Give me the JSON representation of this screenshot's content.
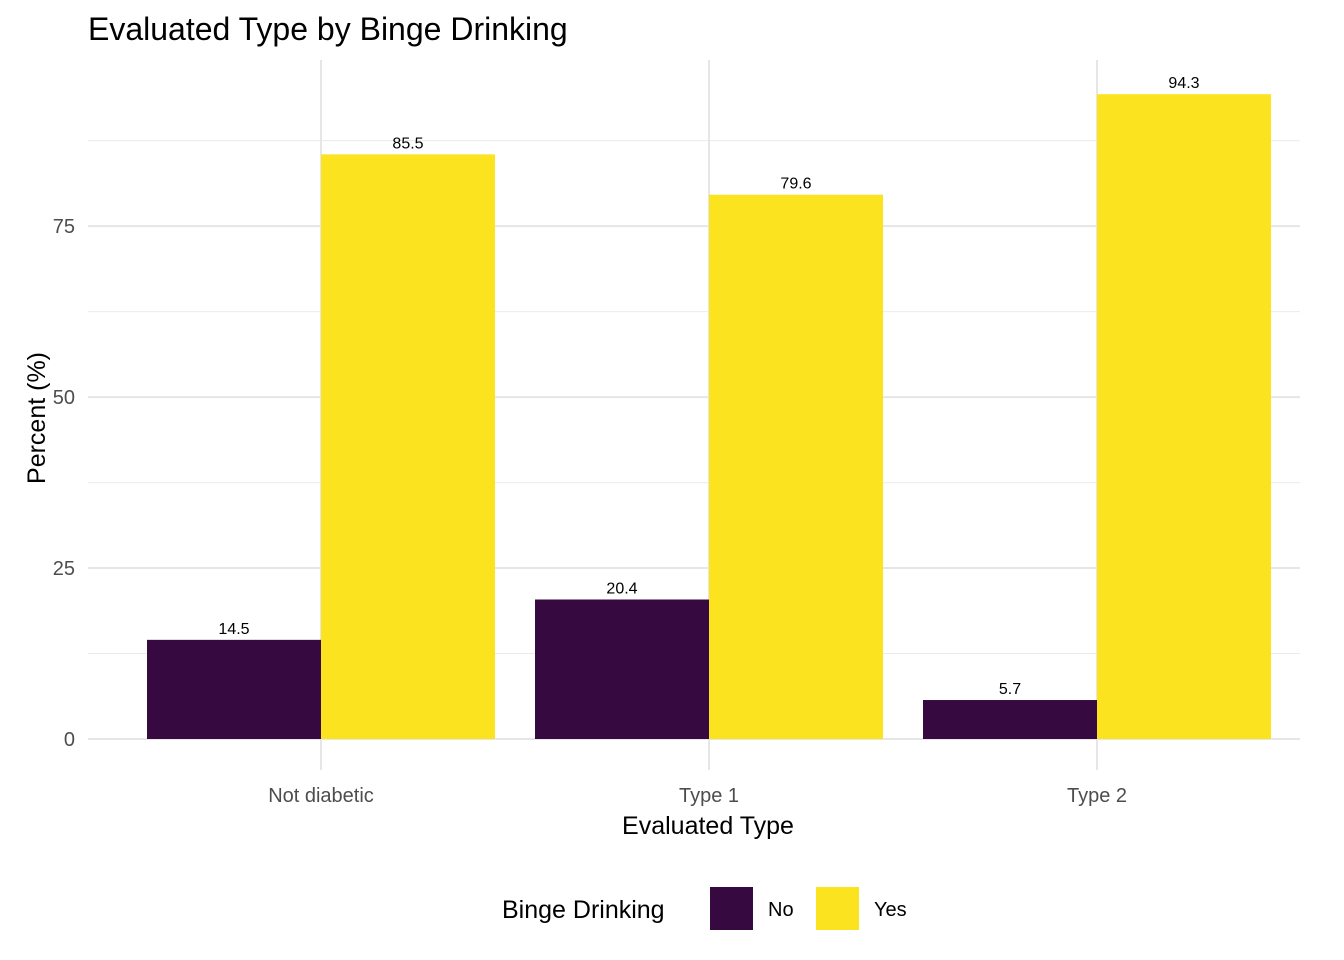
{
  "chart_data": {
    "type": "bar",
    "title": "Evaluated Type by Binge Drinking",
    "xlabel": "Evaluated Type",
    "ylabel": "Percent (%)",
    "categories": [
      "Not diabetic",
      "Type 1",
      "Type 2"
    ],
    "series": [
      {
        "name": "No",
        "values": [
          14.5,
          20.4,
          5.7
        ],
        "color": "#360a40"
      },
      {
        "name": "Yes",
        "values": [
          85.5,
          79.6,
          94.3
        ],
        "color": "#fbe31f"
      }
    ],
    "data_labels": [
      [
        "14.5",
        "20.4",
        "5.7"
      ],
      [
        "85.5",
        "79.6",
        "94.3"
      ]
    ],
    "y_ticks": [
      0,
      25,
      50,
      75
    ],
    "ylim": [
      0,
      100
    ],
    "grid": true,
    "legend": {
      "title": "Binge Drinking",
      "position": "bottom"
    }
  }
}
